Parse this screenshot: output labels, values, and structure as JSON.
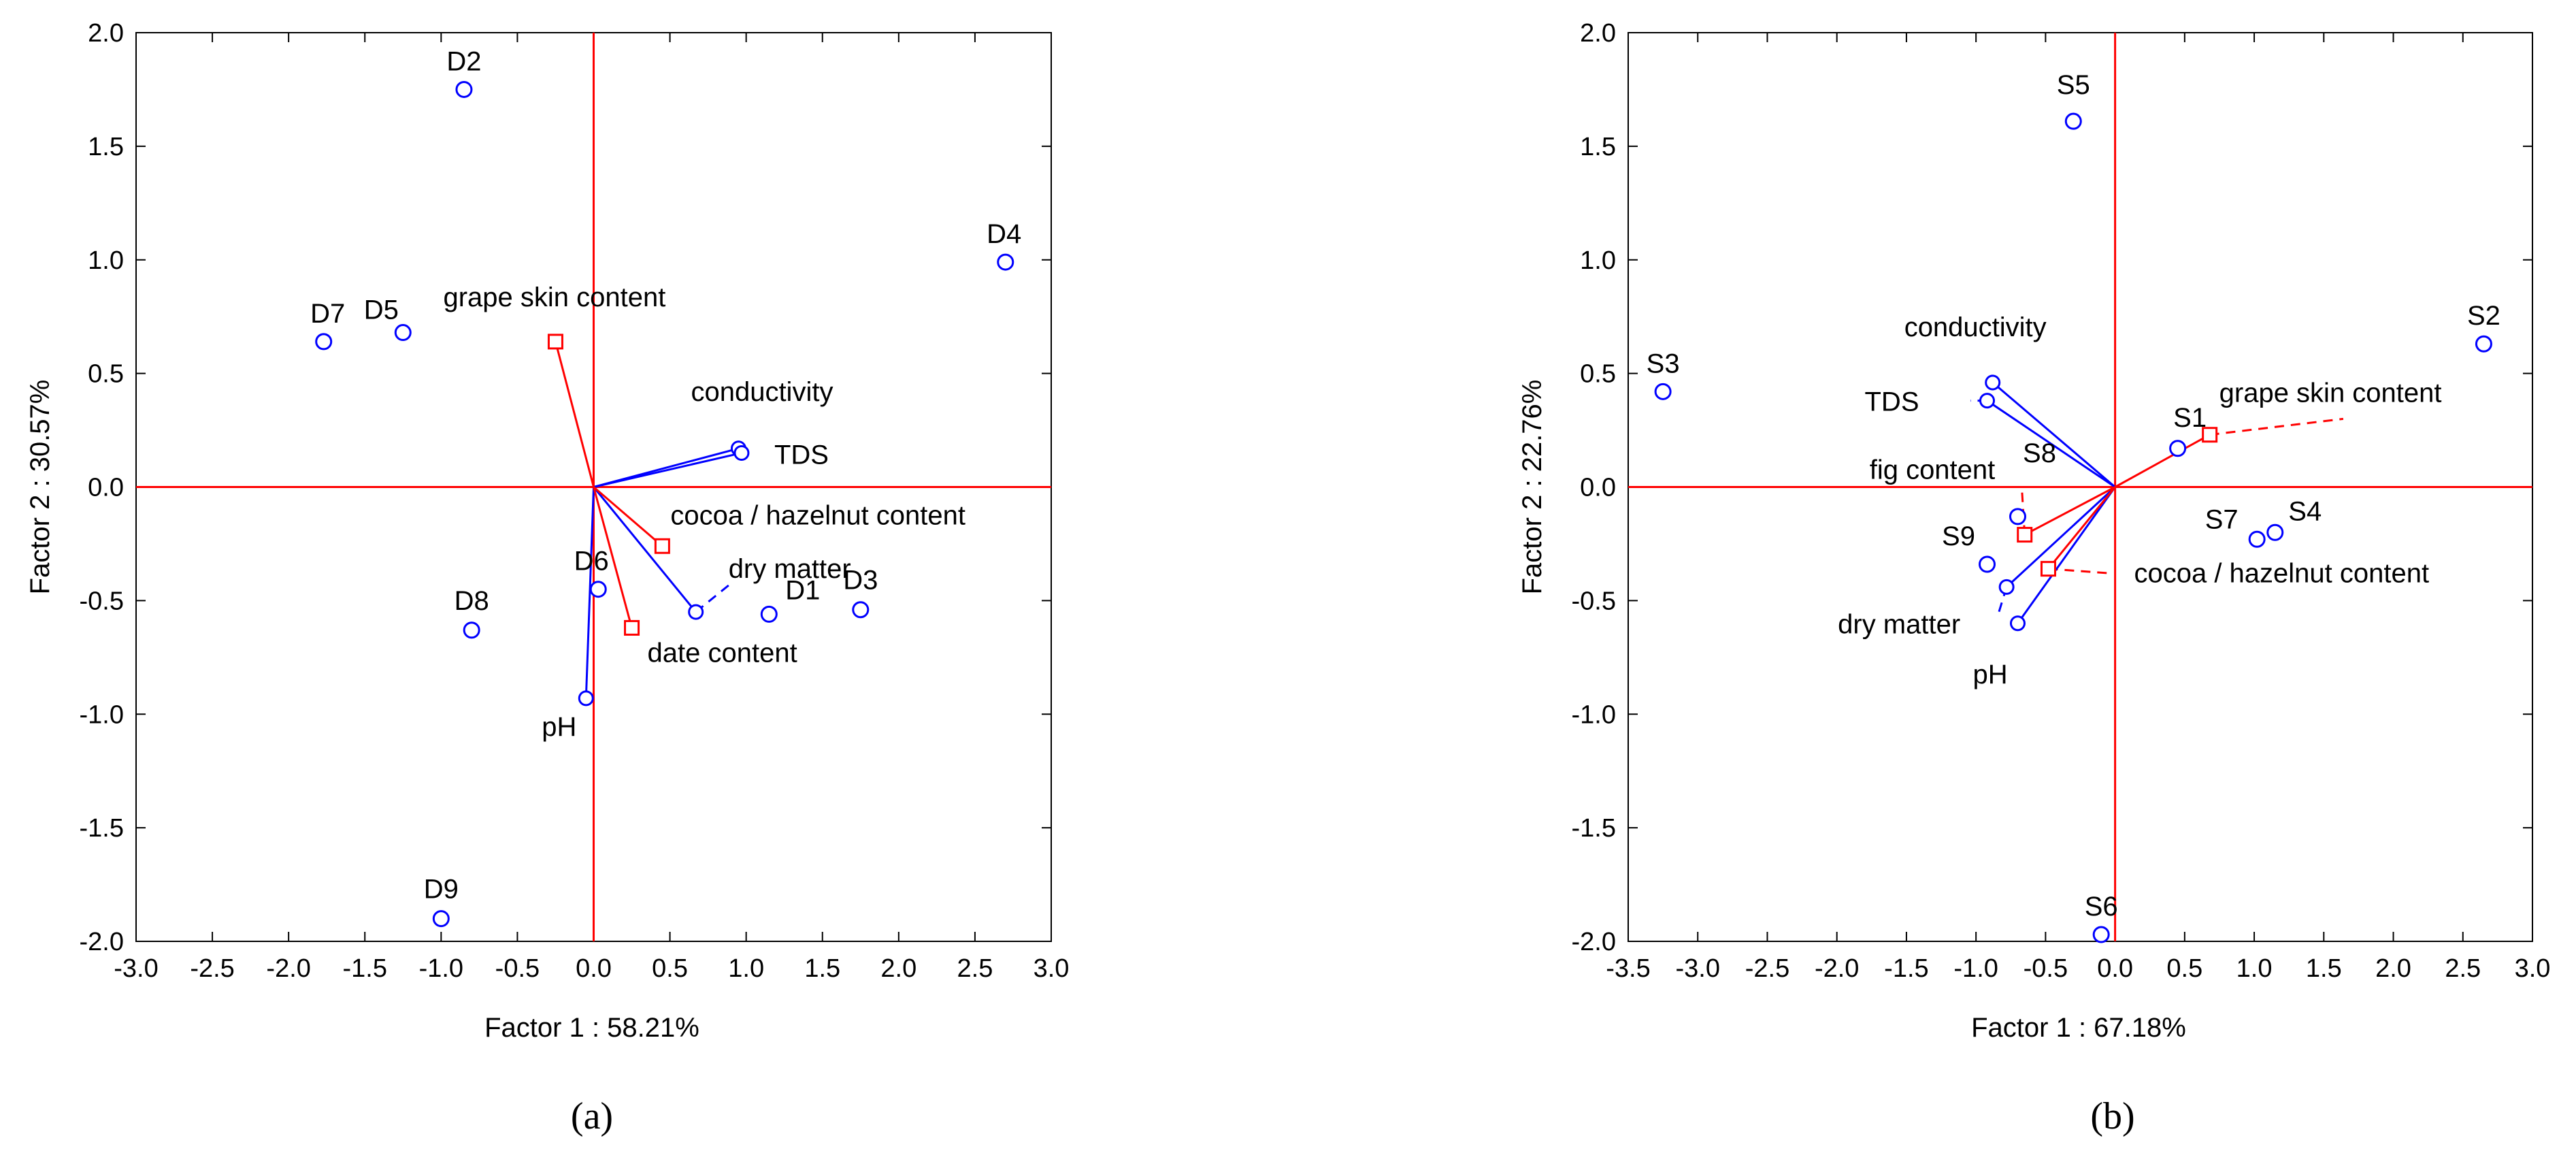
{
  "chart_data": [
    {
      "type": "scatter",
      "panel_label": "(a)",
      "xlabel": "Factor 1 : 58.21%",
      "ylabel": "Factor 2 : 30.57%",
      "xlim": [
        -3.0,
        3.0
      ],
      "ylim": [
        -2.0,
        2.0
      ],
      "xticks": [
        "-3.0",
        "-2.5",
        "-2.0",
        "-1.5",
        "-1.0",
        "-0.5",
        "0.0",
        "0.5",
        "1.0",
        "1.5",
        "2.0",
        "2.5",
        "3.0"
      ],
      "yticks": [
        "2.0",
        "1.5",
        "1.0",
        "0.5",
        "0.0",
        "-0.5",
        "-1.0",
        "-1.5",
        "-2.0"
      ],
      "samples": [
        {
          "label": "D1",
          "x": 1.15,
          "y": -0.56
        },
        {
          "label": "D2",
          "x": -0.85,
          "y": 1.75
        },
        {
          "label": "D3",
          "x": 1.75,
          "y": -0.54
        },
        {
          "label": "D4",
          "x": 2.7,
          "y": 0.99
        },
        {
          "label": "D5",
          "x": -1.25,
          "y": 0.68
        },
        {
          "label": "D6",
          "x": 0.03,
          "y": -0.45
        },
        {
          "label": "D7",
          "x": -1.77,
          "y": 0.64
        },
        {
          "label": "D8",
          "x": -0.8,
          "y": -0.63
        },
        {
          "label": "D9",
          "x": -1.0,
          "y": -1.9
        }
      ],
      "active_vectors": [
        {
          "label": "conductivity",
          "x": 0.95,
          "y": 0.17
        },
        {
          "label": "TDS",
          "x": 0.97,
          "y": 0.15
        },
        {
          "label": "dry matter",
          "x": 0.67,
          "y": -0.55
        },
        {
          "label": "pH",
          "x": -0.05,
          "y": -0.93
        }
      ],
      "supplementary_vectors": [
        {
          "label": "grape skin content",
          "x": -0.25,
          "y": 0.64
        },
        {
          "label": "cocoa / hazelnut content",
          "x": 0.45,
          "y": -0.26
        },
        {
          "label": "date content",
          "x": 0.25,
          "y": -0.62
        }
      ]
    },
    {
      "type": "scatter",
      "panel_label": "(b)",
      "xlabel": "Factor 1 : 67.18%",
      "ylabel": "Factor 2 : 22.76%",
      "xlim": [
        -3.5,
        3.0
      ],
      "ylim": [
        -2.0,
        2.0
      ],
      "xticks": [
        "-3.5",
        "-3.0",
        "-2.5",
        "-2.0",
        "-1.5",
        "-1.0",
        "-0.5",
        "0.0",
        "0.5",
        "1.0",
        "1.5",
        "2.0",
        "2.5",
        "3.0"
      ],
      "yticks": [
        "2.0",
        "1.5",
        "1.0",
        "0.5",
        "0.0",
        "-0.5",
        "-1.0",
        "-1.5",
        "-2.0"
      ],
      "samples": [
        {
          "label": "S1",
          "x": 0.45,
          "y": 0.17
        },
        {
          "label": "S2",
          "x": 2.65,
          "y": 0.63
        },
        {
          "label": "S3",
          "x": -3.25,
          "y": 0.42
        },
        {
          "label": "S4",
          "x": 1.15,
          "y": -0.2
        },
        {
          "label": "S5",
          "x": -0.3,
          "y": 1.61
        },
        {
          "label": "S6",
          "x": -0.1,
          "y": -1.97
        },
        {
          "label": "S7",
          "x": 1.02,
          "y": -0.23
        },
        {
          "label": "S8",
          "x": -0.7,
          "y": -0.13
        },
        {
          "label": "S9",
          "x": -0.92,
          "y": -0.34
        }
      ],
      "active_vectors": [
        {
          "label": "conductivity",
          "x": -0.88,
          "y": 0.46
        },
        {
          "label": "TDS",
          "x": -0.92,
          "y": 0.38
        },
        {
          "label": "dry matter",
          "x": -0.78,
          "y": -0.44
        },
        {
          "label": "pH",
          "x": -0.7,
          "y": -0.6
        }
      ],
      "supplementary_vectors": [
        {
          "label": "grape skin content",
          "x": 0.68,
          "y": 0.23
        },
        {
          "label": "fig content",
          "x": -0.65,
          "y": -0.21
        },
        {
          "label": "cocoa / hazelnut content",
          "x": -0.48,
          "y": -0.36
        }
      ]
    }
  ]
}
